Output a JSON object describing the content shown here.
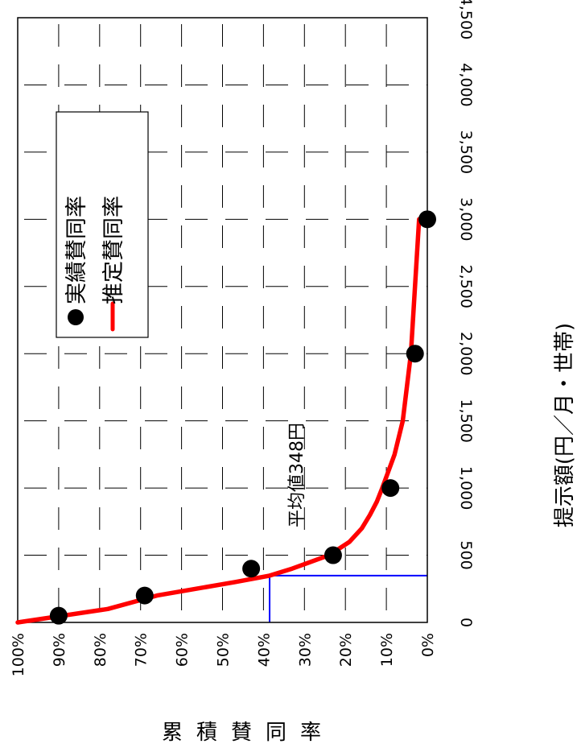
{
  "chart_data": {
    "type": "line",
    "orientation": "rotated-90-clockwise",
    "xlabel": "提示額(円／月・世帯)",
    "ylabel": "累積賛同率",
    "xlim": [
      0,
      4500
    ],
    "ylim": [
      0,
      100
    ],
    "x_ticks": [
      "0",
      "500",
      "1,000",
      "1,500",
      "2,000",
      "2,500",
      "3,000",
      "3,500",
      "4,000",
      "4,500"
    ],
    "y_ticks": [
      "100%",
      "90%",
      "80%",
      "70%",
      "60%",
      "50%",
      "40%",
      "30%",
      "20%",
      "10%",
      "0%"
    ],
    "grid": true,
    "legend": {
      "placement": "top-left",
      "entries": [
        {
          "label": "実績賛同率",
          "marker": "circle",
          "color": "#000000"
        },
        {
          "label": "推定賛同率",
          "marker": "line",
          "color": "#ff0000"
        }
      ]
    },
    "series": [
      {
        "name": "実績賛同率",
        "kind": "scatter",
        "color": "#000000",
        "x": [
          50,
          200,
          400,
          500,
          1000,
          2000,
          3000
        ],
        "y": [
          90,
          69,
          43,
          23,
          9,
          3,
          0
        ]
      },
      {
        "name": "推定賛同率",
        "kind": "line",
        "color": "#ff0000",
        "x": [
          0,
          100,
          200,
          300,
          348,
          400,
          500,
          600,
          700,
          800,
          900,
          1000,
          1250,
          1500,
          2000,
          2500,
          3000
        ],
        "y": [
          100,
          78,
          66,
          47,
          38.5,
          33,
          24,
          19,
          16,
          14,
          12.3,
          11,
          8,
          6,
          4,
          3,
          2
        ]
      }
    ],
    "annotations": [
      {
        "text": "平均値348円",
        "x": 348,
        "color": "#0000ff"
      }
    ]
  }
}
